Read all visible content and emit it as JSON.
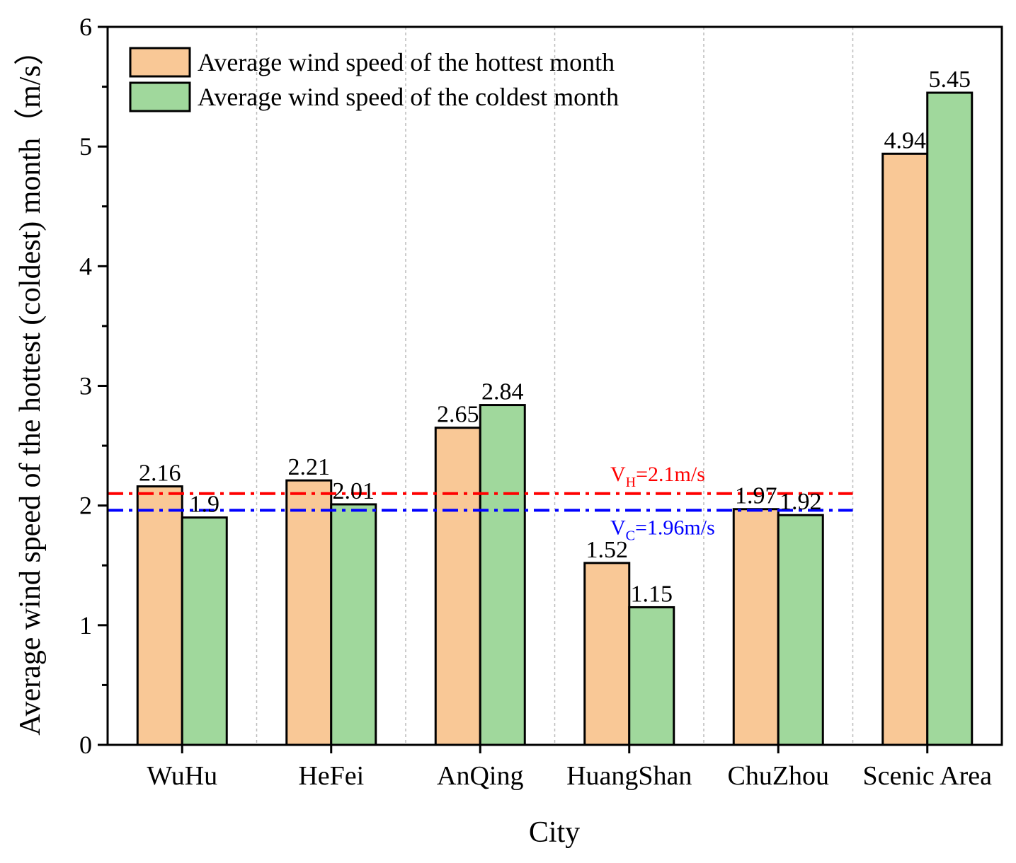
{
  "chart_data": {
    "type": "bar",
    "title": "",
    "xlabel": "City",
    "ylabel": "Average wind speed of the hottest (coldest) month（m/s）",
    "ylim": [
      0,
      6
    ],
    "yticks": [
      "0",
      "1",
      "2",
      "3",
      "4",
      "5",
      "6"
    ],
    "categories": [
      "WuHu",
      "HeFei",
      "AnQing",
      "HuangShan",
      "ChuZhou",
      "Scenic Area"
    ],
    "series": [
      {
        "name": "Average wind speed of the hottest month",
        "values": [
          2.16,
          2.21,
          2.65,
          1.52,
          1.97,
          4.94
        ],
        "labels": [
          "2.16",
          "2.21",
          "2.65",
          "1.52",
          "1.97",
          "4.94"
        ],
        "color": "#F9C896"
      },
      {
        "name": "Average wind speed of the coldest month",
        "values": [
          1.9,
          2.01,
          2.84,
          1.15,
          1.92,
          5.45
        ],
        "labels": [
          "1.9",
          "2.01",
          "2.84",
          "1.15",
          "1.92",
          "5.45"
        ],
        "color": "#A0D89C"
      }
    ],
    "reference_lines": [
      {
        "name": "hottest-reference",
        "prefix": "V",
        "sub": "H",
        "suffix": "=2.1m/s",
        "value": 2.1,
        "color": "#FF0000",
        "extent_categories": 5
      },
      {
        "name": "coldest-reference",
        "prefix": "V",
        "sub": "C",
        "suffix": "=1.96m/s",
        "value": 1.96,
        "color": "#0000FF",
        "extent_categories": 5
      }
    ],
    "legend": {
      "position": "top-left"
    },
    "grid": "vertical dashed separators between categories"
  }
}
